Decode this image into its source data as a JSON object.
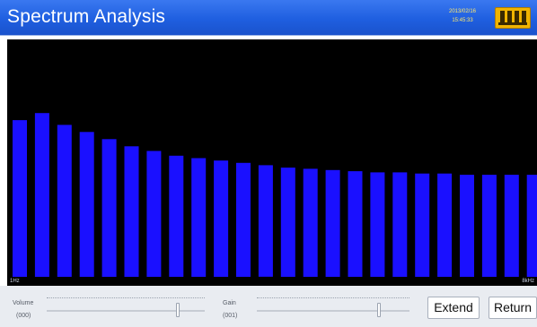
{
  "header": {
    "title": "Spectrum Analysis",
    "date": "2013/02/16",
    "time": "15:45:33",
    "keyboard_icon": "keyboard-icon"
  },
  "spectrum": {
    "bar_color": "#1a10ff",
    "background": "#000000",
    "axis_left_label": "1Hz",
    "axis_right_label": "8kHz",
    "bar_levels": [
      0.66,
      0.69,
      0.64,
      0.61,
      0.58,
      0.55,
      0.53,
      0.51,
      0.5,
      0.49,
      0.48,
      0.47,
      0.46,
      0.455,
      0.45,
      0.445,
      0.44,
      0.44,
      0.435,
      0.435,
      0.43,
      0.43,
      0.43,
      0.43
    ]
  },
  "controls": {
    "volume": {
      "label": "Volume",
      "value": "(000)",
      "level": 0.83
    },
    "gain": {
      "label": "Gain",
      "value": "(001)",
      "level": 0.8
    },
    "extend_label": "Extend",
    "return_label": "Return"
  }
}
